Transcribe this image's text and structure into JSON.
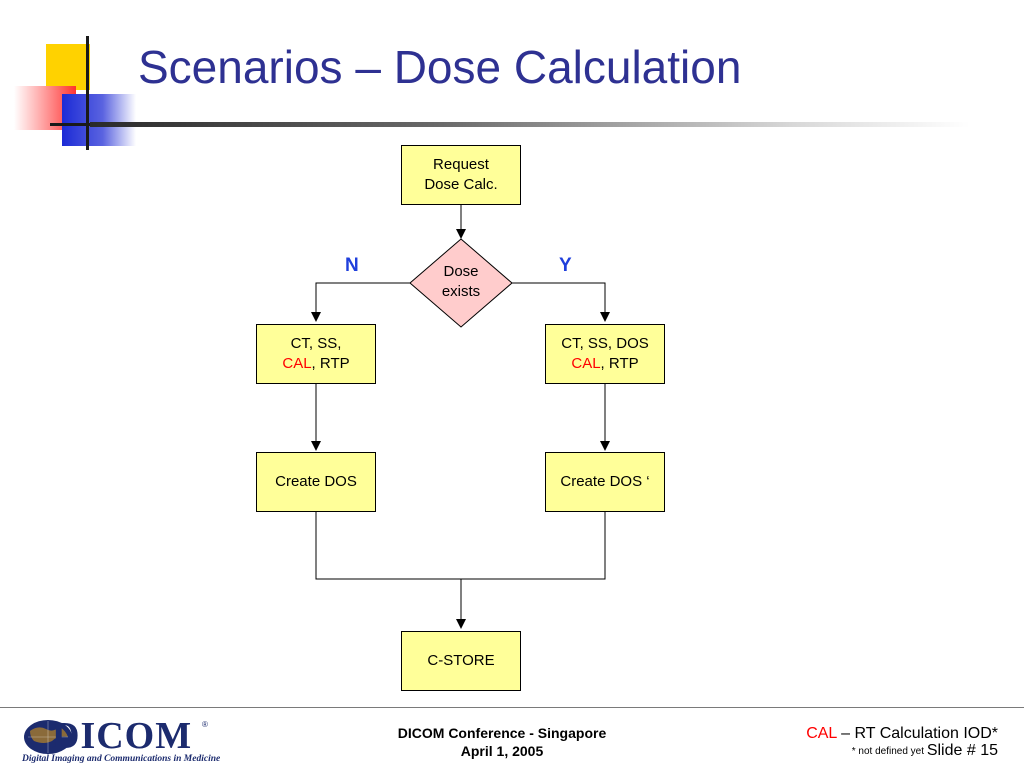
{
  "title": "Scenarios – Dose Calculation",
  "diagram": {
    "nodes": {
      "request": {
        "lines": [
          "Request",
          "Dose Calc."
        ]
      },
      "decision": {
        "lines": [
          "Dose",
          "exists"
        ]
      },
      "left_input": {
        "line1": "CT, SS,",
        "line2_highlight": "CAL",
        "line2_rest": ", RTP"
      },
      "right_input": {
        "line1": "CT, SS, DOS",
        "line2_highlight": "CAL",
        "line2_rest": ", RTP"
      },
      "left_create": {
        "label": "Create DOS"
      },
      "right_create": {
        "label": "Create DOS ‘"
      },
      "store": {
        "label": "C-STORE"
      }
    },
    "branch_labels": {
      "no": "N",
      "yes": "Y"
    }
  },
  "footer": {
    "center_line1": "DICOM Conference - Singapore",
    "center_line2": "April 1, 2005",
    "legend_abbrev": "CAL",
    "legend_text": " – RT Calculation IOD*",
    "footnote": "* not defined yet",
    "slide_number": "Slide # 15",
    "logo_text": "DICOM",
    "logo_mark": "®",
    "logo_tagline": "Digital Imaging and Communications in Medicine"
  },
  "colors": {
    "title": "#2e3192",
    "box_fill": "#ffff99",
    "decision_fill": "#ffcccc",
    "highlight": "#ff0000",
    "branch_label": "#1f3fdc"
  }
}
